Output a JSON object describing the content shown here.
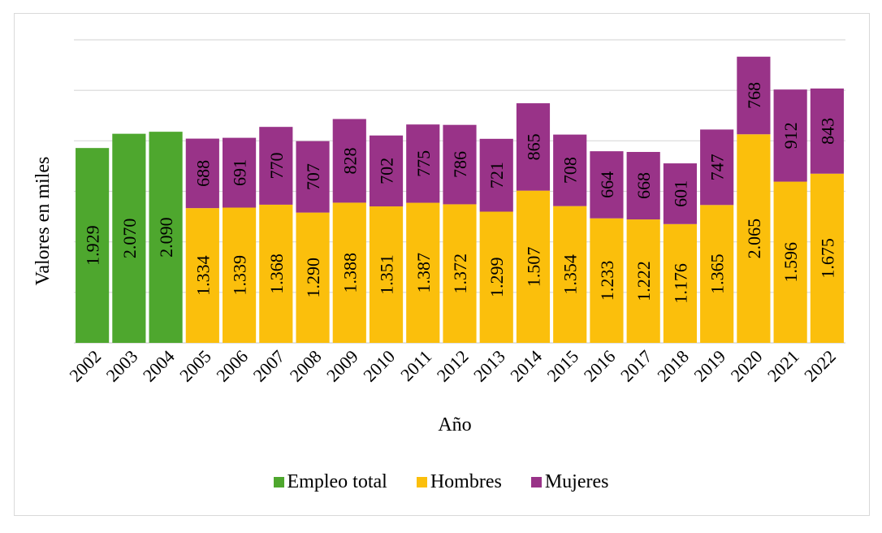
{
  "chart_data": {
    "type": "bar",
    "stacked": true,
    "title": "",
    "xlabel": "Año",
    "ylabel": "Valores en miles",
    "ylim": [
      0,
      3000
    ],
    "ytick_step": 500,
    "grid": true,
    "legend_position": "bottom",
    "categories": [
      "2002",
      "2003",
      "2004",
      "2005",
      "2006",
      "2007",
      "2008",
      "2009",
      "2010",
      "2011",
      "2012",
      "2013",
      "2014",
      "2015",
      "2016",
      "2017",
      "2018",
      "2019",
      "2020",
      "2021",
      "2022"
    ],
    "series": [
      {
        "name": "Empleo total",
        "color": "#4ea72e",
        "values": [
          1929,
          2070,
          2090,
          null,
          null,
          null,
          null,
          null,
          null,
          null,
          null,
          null,
          null,
          null,
          null,
          null,
          null,
          null,
          null,
          null,
          null
        ],
        "labels": [
          "1.929",
          "2.070",
          "2.090",
          "",
          "",
          "",
          "",
          "",
          "",
          "",
          "",
          "",
          "",
          "",
          "",
          "",
          "",
          "",
          "",
          "",
          ""
        ]
      },
      {
        "name": "Hombres",
        "color": "#fbbf0c",
        "values": [
          null,
          null,
          null,
          1334,
          1339,
          1368,
          1290,
          1388,
          1351,
          1387,
          1372,
          1299,
          1507,
          1354,
          1233,
          1222,
          1176,
          1365,
          2065,
          1596,
          1675
        ],
        "labels": [
          "",
          "",
          "",
          "1.334",
          "1.339",
          "1.368",
          "1.290",
          "1.388",
          "1.351",
          "1.387",
          "1.372",
          "1.299",
          "1.507",
          "1.354",
          "1.233",
          "1.222",
          "1.176",
          "1.365",
          "2.065",
          "1.596",
          "1.675"
        ]
      },
      {
        "name": "Mujeres",
        "color": "#993388",
        "values": [
          null,
          null,
          null,
          688,
          691,
          770,
          707,
          828,
          702,
          775,
          786,
          721,
          865,
          708,
          664,
          668,
          601,
          747,
          768,
          912,
          843
        ],
        "labels": [
          "",
          "",
          "",
          "688",
          "691",
          "770",
          "707",
          "828",
          "702",
          "775",
          "786",
          "721",
          "865",
          "708",
          "664",
          "668",
          "601",
          "747",
          "768",
          "912",
          "843"
        ]
      }
    ]
  },
  "colors": {
    "grid": "#d9d9d9",
    "frame": "#d9d9d9"
  }
}
